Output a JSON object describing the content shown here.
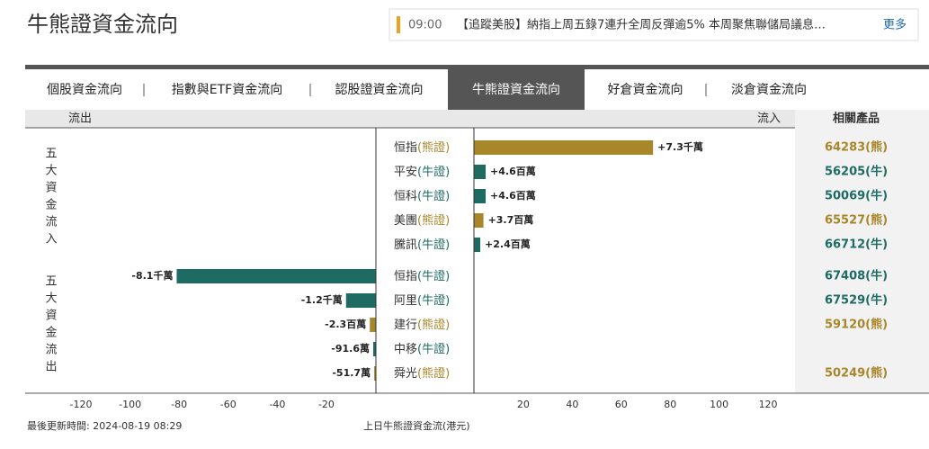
{
  "header": {
    "title": "牛熊證資金流向",
    "news_time": "09:00",
    "news_text": "【追蹤美股】納指上周五錄7連升全周反彈逾5% 本周聚焦聯儲局議息…",
    "more": "更多"
  },
  "tabs": [
    "個股資金流向",
    "指數與ETF資金流向",
    "認股證資金流向",
    "牛熊證資金流向",
    "好倉資金流向",
    "淡倉資金流向"
  ],
  "active_tab": 3,
  "columns": {
    "outflow": "流出",
    "inflow": "流入",
    "products": "相關產品"
  },
  "groups": [
    "五大資金流入",
    "五大資金流出"
  ],
  "chart_data": {
    "type": "bar",
    "orientation": "horizontal",
    "categories": [
      "恒指",
      "平安",
      "恒科",
      "美團",
      "騰訊",
      "恒指",
      "阿里",
      "建行",
      "中移",
      "舜光"
    ],
    "kinds": [
      "(熊證)",
      "(牛證)",
      "(牛證)",
      "(熊證)",
      "(牛證)",
      "(牛證)",
      "(牛證)",
      "(熊證)",
      "(牛證)",
      "(熊證)"
    ],
    "values": [
      73,
      4.6,
      4.6,
      3.7,
      2.4,
      -81,
      -12,
      -2.3,
      -0.916,
      -0.517
    ],
    "value_labels": [
      "+7.3千萬",
      "+4.6百萬",
      "+4.6百萬",
      "+3.7百萬",
      "+2.4百萬",
      "-8.1千萬",
      "-1.2千萬",
      "-2.3百萬",
      "-91.6萬",
      "-51.7萬"
    ],
    "colors": [
      "#a8862a",
      "#1e6b63",
      "#1e6b63",
      "#a8862a",
      "#1e6b63",
      "#1e6b63",
      "#1e6b63",
      "#a8862a",
      "#1e6b63",
      "#a8862a"
    ],
    "products": [
      "64283(熊)",
      "56205(牛)",
      "50069(牛)",
      "65527(熊)",
      "66712(牛)",
      "67408(牛)",
      "67529(牛)",
      "59120(熊)",
      null,
      "50249(熊)"
    ],
    "xlim": [
      -142,
      131
    ],
    "xticks": [
      -120,
      -100,
      -80,
      -60,
      -40,
      -20,
      20,
      40,
      60,
      80,
      100,
      120
    ],
    "xlabel": "上日牛熊證資金流(港元)",
    "updated": "最後更新時間: 2024-08-19 08:29"
  }
}
